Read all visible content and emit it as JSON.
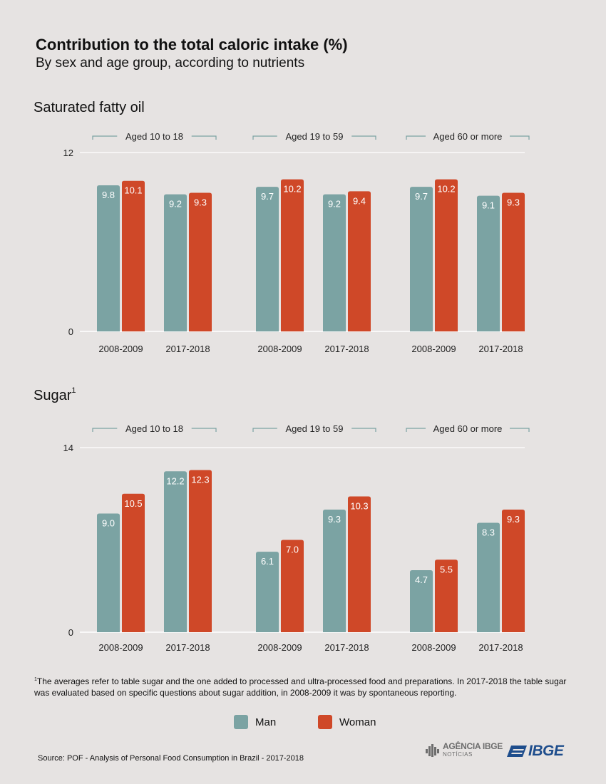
{
  "header": {
    "title": "Contribution to the total caloric intake (%)",
    "subtitle": "By sex and age group, according to nutrients"
  },
  "colors": {
    "man": "#7ba3a3",
    "woman": "#cf4828",
    "bracket": "#7ba3a3",
    "grid": "#ffffff"
  },
  "chart_data": [
    {
      "type": "bar",
      "title": "Saturated fatty oil",
      "title_sup": "",
      "groups": [
        "Aged 10 to 18",
        "Aged 19 to 59",
        "Aged 60 or more"
      ],
      "categories": [
        "2008-2009",
        "2017-2018",
        "2008-2009",
        "2017-2018",
        "2008-2009",
        "2017-2018"
      ],
      "series": [
        {
          "name": "Man",
          "values": [
            9.8,
            9.2,
            9.7,
            9.2,
            9.7,
            9.1
          ],
          "labels": [
            "9.8",
            "9.2",
            "9.7",
            "9.2",
            "9.7",
            "9.1"
          ]
        },
        {
          "name": "Woman",
          "values": [
            10.1,
            9.3,
            10.2,
            9.4,
            10.2,
            9.3
          ],
          "labels": [
            "10.1",
            "9.3",
            "10.2",
            "9.4",
            "10.2",
            "9.3"
          ]
        }
      ],
      "ylim": [
        0,
        12
      ],
      "yticks": [
        "0",
        "12"
      ],
      "xlabel": "",
      "ylabel": ""
    },
    {
      "type": "bar",
      "title": "Sugar",
      "title_sup": "1",
      "groups": [
        "Aged 10 to 18",
        "Aged 19 to 59",
        "Aged 60 or more"
      ],
      "categories": [
        "2008-2009",
        "2017-2018",
        "2008-2009",
        "2017-2018",
        "2008-2009",
        "2017-2018"
      ],
      "series": [
        {
          "name": "Man",
          "values": [
            9.0,
            12.2,
            6.1,
            9.3,
            4.7,
            8.3
          ],
          "labels": [
            "9.0",
            "12.2",
            "6.1",
            "9.3",
            "4.7",
            "8.3"
          ]
        },
        {
          "name": "Woman",
          "values": [
            10.5,
            12.3,
            7.0,
            10.3,
            5.5,
            9.3
          ],
          "labels": [
            "10.5",
            "12.3",
            "7.0",
            "10.3",
            "5.5",
            "9.3"
          ]
        }
      ],
      "ylim": [
        0,
        14
      ],
      "yticks": [
        "0",
        "14"
      ],
      "xlabel": "",
      "ylabel": ""
    }
  ],
  "footnote": {
    "marker": "1",
    "text": "The averages refer to table sugar and the one added to processed and ultra-processed food and preparations. In 2017-2018 the table sugar was evaluated based on specific questions about sugar addition, in 2008-2009 it was by spontaneous reporting."
  },
  "legend": {
    "man": "Man",
    "woman": "Woman"
  },
  "source": "Source: POF - Analysis of Personal Food Consumption in Brazil - 2017-2018",
  "logos": {
    "agencia_line1": "AGÊNCIA IBGE",
    "agencia_line2": "NOTÍCIAS",
    "ibge": "IBGE"
  }
}
